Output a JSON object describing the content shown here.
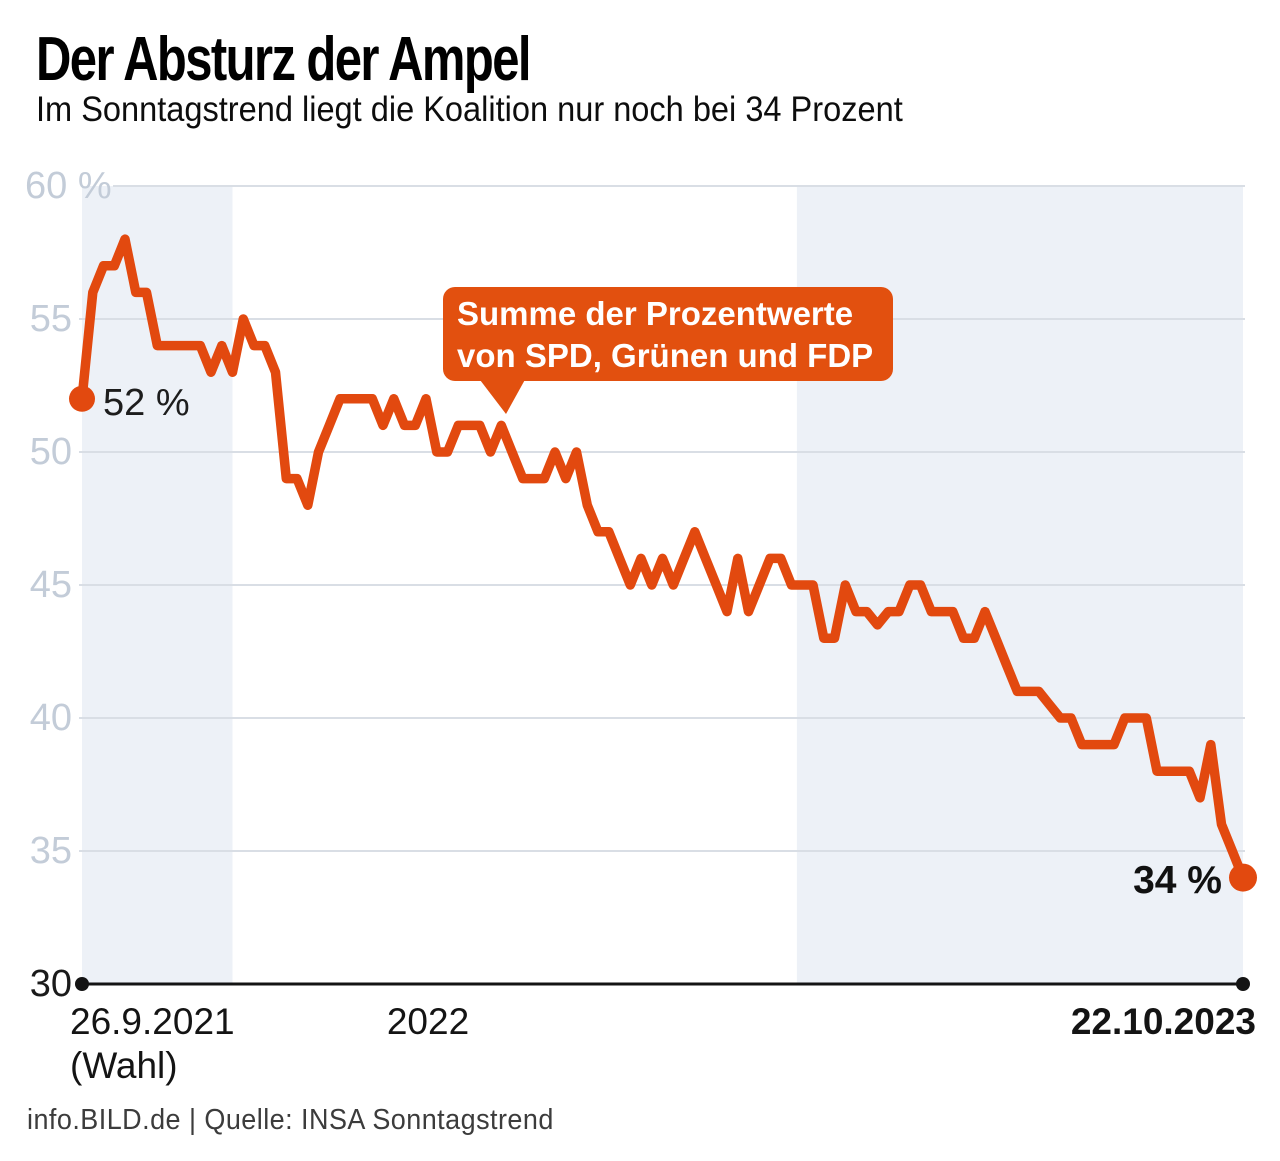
{
  "header": {
    "title": "Der Absturz der Ampel",
    "subtitle": "Im Sonntagstrend liegt die Koalition nur noch bei 34 Prozent"
  },
  "callout": {
    "line1": "Summe der Prozentwerte",
    "line2": "von SPD, Grünen und FDP"
  },
  "footer": {
    "text": "info.BILD.de | Quelle: INSA Sonntagstrend"
  },
  "chart_data": {
    "type": "line",
    "title": "Der Absturz der Ampel",
    "unit": "%",
    "ylim": [
      30,
      60
    ],
    "grid": true,
    "y_axis": [
      {
        "value": 60,
        "label": "60 %"
      },
      {
        "value": 55,
        "label": "55"
      },
      {
        "value": 50,
        "label": "50"
      },
      {
        "value": 45,
        "label": "45"
      },
      {
        "value": 40,
        "label": "40"
      },
      {
        "value": 35,
        "label": "35"
      },
      {
        "value": 30,
        "label": "30"
      }
    ],
    "x_axis": {
      "start_label": "26.9.2021",
      "start_sublabel": "(Wahl)",
      "mid_label": "2022",
      "end_label": "22.10.2023"
    },
    "annotations": {
      "start": "52 %",
      "end": "34 %"
    },
    "series": [
      {
        "name": "Summe der Prozentwerte von SPD, Grünen und FDP",
        "values": [
          52,
          56,
          57,
          57,
          58,
          56,
          56,
          54,
          54,
          54,
          54,
          54,
          53,
          54,
          53,
          55,
          54,
          54,
          53,
          49,
          49,
          48,
          50,
          51,
          52,
          52,
          52,
          52,
          51,
          52,
          51,
          51,
          52,
          50,
          50,
          51,
          51,
          51,
          50,
          51,
          50,
          49,
          49,
          49,
          50,
          49,
          50,
          48,
          47,
          47,
          46,
          45,
          46,
          45,
          46,
          45,
          46,
          47,
          46,
          45,
          44,
          46,
          44,
          45,
          46,
          46,
          45,
          45,
          45,
          43,
          43,
          45,
          44,
          44,
          43.5,
          44,
          44,
          45,
          45,
          44,
          44,
          44,
          43,
          43,
          44,
          43,
          42,
          41,
          41,
          41,
          40.5,
          40,
          40,
          39,
          39,
          39,
          39,
          40,
          40,
          40,
          38,
          38,
          38,
          38,
          37,
          39,
          36,
          35,
          34
        ]
      }
    ],
    "shaded_bands": [
      {
        "from_week": 0,
        "to_week": 14
      },
      {
        "from_week": 66.5,
        "to_week": 108
      }
    ],
    "colors": {
      "line": "#e2490f",
      "callout": "#e2500f",
      "band": "#edf1f7",
      "grid": "#d9dee5",
      "axis": "#141414",
      "tick_light": "#c3ccd8",
      "tick_dark": "#1a1a1a"
    }
  }
}
